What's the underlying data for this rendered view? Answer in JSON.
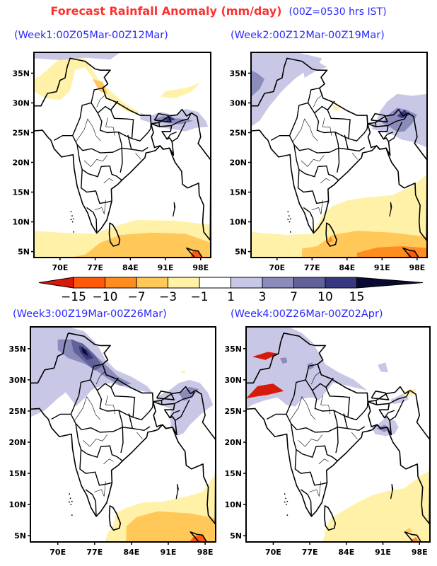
{
  "header": {
    "title": "Forecast Rainfall Anomaly (mm/day)",
    "subtitle": "(00Z=0530 hrs IST)"
  },
  "panels": [
    {
      "id": "week1",
      "title": "(Week1:00Z05Mar-00Z12Mar)"
    },
    {
      "id": "week2",
      "title": "(Week2:00Z12Mar-00Z19Mar)"
    },
    {
      "id": "week3",
      "title": "(Week3:00Z19Mar-00Z26Mar)"
    },
    {
      "id": "week4",
      "title": "(Week4:00Z26Mar-00Z02Apr)"
    }
  ],
  "axes": {
    "lat_ticks": [
      "35N",
      "30N",
      "25N",
      "20N",
      "15N",
      "10N",
      "5N"
    ],
    "lat_values": [
      35,
      30,
      25,
      20,
      15,
      10,
      5
    ],
    "lon_ticks": [
      "70E",
      "77E",
      "84E",
      "91E",
      "98E"
    ],
    "lon_values": [
      70,
      77,
      84,
      91,
      98
    ]
  },
  "colorbar": {
    "labels": [
      "−15",
      "−10",
      "−7",
      "−3",
      "−1",
      "1",
      "3",
      "7",
      "10",
      "15"
    ],
    "levels": [
      -15,
      -10,
      -7,
      -3,
      -1,
      1,
      3,
      7,
      10,
      15
    ],
    "colors": [
      "#d81a0a",
      "#ff5a0a",
      "#ff8c20",
      "#ffc858",
      "#fff2a8",
      "#ffffff",
      "#c8c8e6",
      "#8c8cbc",
      "#626298",
      "#383880",
      "#0a0a32"
    ]
  }
}
